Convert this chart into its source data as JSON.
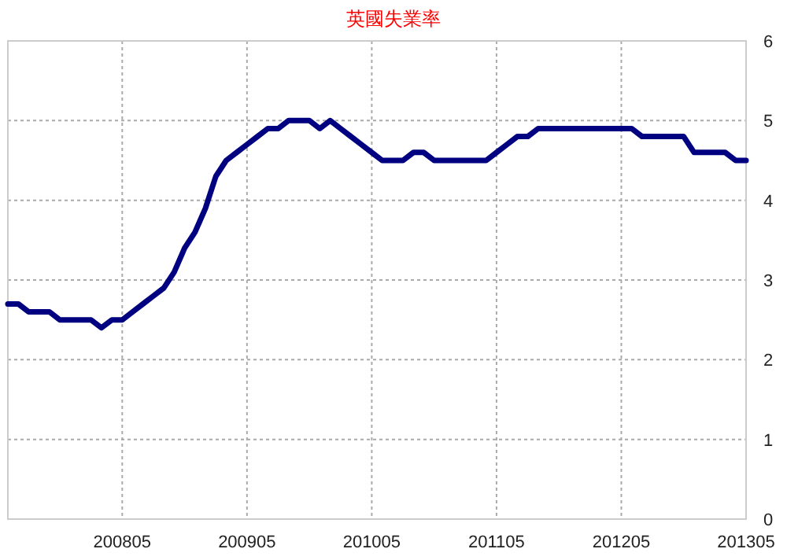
{
  "chart_data": {
    "type": "line",
    "title": "英國失業率",
    "x": [
      "2007-06",
      "2007-07",
      "2007-08",
      "2007-09",
      "2007-10",
      "2007-11",
      "2007-12",
      "2008-01",
      "2008-02",
      "2008-03",
      "2008-04",
      "2008-05",
      "2008-06",
      "2008-07",
      "2008-08",
      "2008-09",
      "2008-10",
      "2008-11",
      "2008-12",
      "2009-01",
      "2009-02",
      "2009-03",
      "2009-04",
      "2009-05",
      "2009-06",
      "2009-07",
      "2009-08",
      "2009-09",
      "2009-10",
      "2009-11",
      "2009-12",
      "2010-01",
      "2010-02",
      "2010-03",
      "2010-04",
      "2010-05",
      "2010-06",
      "2010-07",
      "2010-08",
      "2010-09",
      "2010-10",
      "2010-11",
      "2010-12",
      "2011-01",
      "2011-02",
      "2011-03",
      "2011-04",
      "2011-05",
      "2011-06",
      "2011-07",
      "2011-08",
      "2011-09",
      "2011-10",
      "2011-11",
      "2011-12",
      "2012-01",
      "2012-02",
      "2012-03",
      "2012-04",
      "2012-05",
      "2012-06",
      "2012-07",
      "2012-08",
      "2012-09",
      "2012-10",
      "2012-11",
      "2012-12",
      "2013-01",
      "2013-02",
      "2013-03",
      "2013-04",
      "2013-05"
    ],
    "series": [
      {
        "color": "#000080",
        "values": [
          2.7,
          2.7,
          2.6,
          2.6,
          2.6,
          2.5,
          2.5,
          2.5,
          2.5,
          2.4,
          2.5,
          2.5,
          2.6,
          2.7,
          2.8,
          2.9,
          3.1,
          3.4,
          3.6,
          3.9,
          4.3,
          4.5,
          4.6,
          4.7,
          4.8,
          4.9,
          4.9,
          5.0,
          5.0,
          5.0,
          4.9,
          5.0,
          4.9,
          4.8,
          4.7,
          4.6,
          4.5,
          4.5,
          4.5,
          4.6,
          4.6,
          4.5,
          4.5,
          4.5,
          4.5,
          4.5,
          4.5,
          4.6,
          4.7,
          4.8,
          4.8,
          4.9,
          4.9,
          4.9,
          4.9,
          4.9,
          4.9,
          4.9,
          4.9,
          4.9,
          4.9,
          4.8,
          4.8,
          4.8,
          4.8,
          4.8,
          4.6,
          4.6,
          4.6,
          4.6,
          4.5,
          4.5
        ]
      }
    ],
    "xlim": [
      "2007-06",
      "2013-05"
    ],
    "xticks": [
      {
        "value": "2008-05",
        "label": "200805"
      },
      {
        "value": "2009-05",
        "label": "200905"
      },
      {
        "value": "2010-05",
        "label": "201005"
      },
      {
        "value": "2011-05",
        "label": "201105"
      },
      {
        "value": "2012-05",
        "label": "201205"
      },
      {
        "value": "2013-05",
        "label": "201305"
      }
    ],
    "ylim": [
      0,
      6
    ],
    "yticks": [
      0,
      1,
      2,
      3,
      4,
      5,
      6
    ],
    "grid": true
  }
}
